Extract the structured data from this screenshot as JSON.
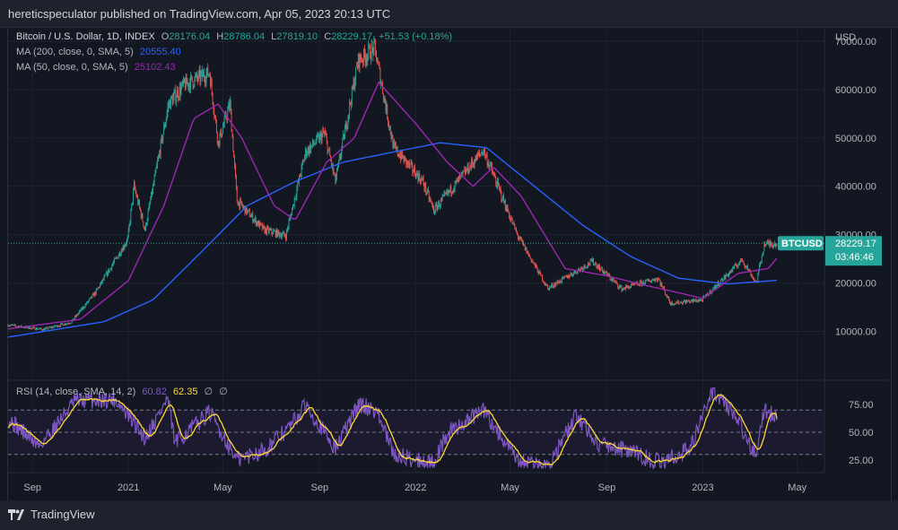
{
  "header": {
    "published": "hereticspeculator published on TradingView.com, Apr 05, 2023 20:13 UTC"
  },
  "legend": {
    "symbol": "Bitcoin / U.S. Dollar, 1D, INDEX",
    "ohlc": {
      "o_label": "O",
      "o": "28176.04",
      "h_label": "H",
      "h": "28786.04",
      "l_label": "L",
      "l": "27819.10",
      "c_label": "C",
      "c": "28229.17",
      "change": "+51.53 (+0.18%)"
    },
    "ma200": {
      "label": "MA (200, close, 0, SMA, 5)",
      "value": "20555.40"
    },
    "ma50": {
      "label": "MA (50, close, 0, SMA, 5)",
      "value": "25102.43"
    },
    "rsi": {
      "label": "RSI (14, close, SMA, 14, 2)",
      "value": "60.82",
      "sma_value": "62.35",
      "extra1": "∅",
      "extra2": "∅"
    }
  },
  "price_axis": {
    "currency": "USD",
    "ticks": [
      "70000.00",
      "60000.00",
      "50000.00",
      "40000.00",
      "30000.00",
      "20000.00",
      "10000.00"
    ]
  },
  "price_tag": {
    "symbol": "BTCUSD",
    "price": "28229.17",
    "countdown": "03:46:46"
  },
  "rsi_axis": {
    "ticks": [
      "75.00",
      "50.00",
      "25.00"
    ]
  },
  "time_axis": {
    "labels": [
      "Sep",
      "2021",
      "May",
      "Sep",
      "2022",
      "May",
      "Sep",
      "2023",
      "May"
    ]
  },
  "footer": {
    "brand": "TradingView"
  },
  "colors": {
    "up": "#26a69a",
    "down": "#ef5350",
    "ma200": "#2962ff",
    "ma50": "#9c27b0",
    "rsi": "#7e57c2",
    "rsi_sma": "#fdd835",
    "bg": "#131722"
  },
  "chart_data": {
    "type": "candlestick",
    "title": "Bitcoin / U.S. Dollar, 1D, INDEX",
    "ylim": [
      0,
      72000
    ],
    "price_key_points": [
      [
        "2020-08-01",
        11300
      ],
      [
        "2020-09-15",
        10400
      ],
      [
        "2020-10-20",
        11900
      ],
      [
        "2020-11-20",
        18000
      ],
      [
        "2020-12-31",
        29000
      ],
      [
        "2021-01-08",
        40000
      ],
      [
        "2021-01-22",
        31000
      ],
      [
        "2021-02-21",
        57000
      ],
      [
        "2021-03-13",
        61000
      ],
      [
        "2021-04-14",
        63500
      ],
      [
        "2021-04-25",
        49000
      ],
      [
        "2021-05-10",
        57000
      ],
      [
        "2021-05-19",
        37000
      ],
      [
        "2021-06-22",
        31000
      ],
      [
        "2021-07-20",
        29800
      ],
      [
        "2021-08-14",
        47000
      ],
      [
        "2021-09-07",
        51000
      ],
      [
        "2021-09-21",
        41000
      ],
      [
        "2021-10-20",
        66000
      ],
      [
        "2021-11-10",
        68500
      ],
      [
        "2021-12-04",
        48000
      ],
      [
        "2022-01-10",
        41000
      ],
      [
        "2022-01-24",
        35000
      ],
      [
        "2022-03-28",
        47500
      ],
      [
        "2022-05-10",
        30000
      ],
      [
        "2022-06-18",
        18900
      ],
      [
        "2022-08-14",
        24500
      ],
      [
        "2022-09-20",
        18800
      ],
      [
        "2022-11-05",
        21000
      ],
      [
        "2022-11-21",
        15800
      ],
      [
        "2022-12-31",
        16500
      ],
      [
        "2023-02-20",
        24800
      ],
      [
        "2023-03-10",
        20000
      ],
      [
        "2023-03-20",
        28000
      ],
      [
        "2023-04-05",
        28229
      ]
    ],
    "ma200_key_points": [
      [
        "2020-08-01",
        8800
      ],
      [
        "2020-12-01",
        12000
      ],
      [
        "2021-02-01",
        16500
      ],
      [
        "2021-04-01",
        26000
      ],
      [
        "2021-06-01",
        36000
      ],
      [
        "2021-08-01",
        41000
      ],
      [
        "2021-10-01",
        45000
      ],
      [
        "2021-12-01",
        47000
      ],
      [
        "2022-02-01",
        49000
      ],
      [
        "2022-04-01",
        48000
      ],
      [
        "2022-06-01",
        40000
      ],
      [
        "2022-08-01",
        32000
      ],
      [
        "2022-10-01",
        25500
      ],
      [
        "2022-12-01",
        21000
      ],
      [
        "2023-02-01",
        19800
      ],
      [
        "2023-04-05",
        20555
      ]
    ],
    "ma50_key_points": [
      [
        "2020-08-01",
        10500
      ],
      [
        "2020-11-01",
        12500
      ],
      [
        "2021-01-01",
        20500
      ],
      [
        "2021-02-15",
        36000
      ],
      [
        "2021-03-25",
        54000
      ],
      [
        "2021-04-25",
        57000
      ],
      [
        "2021-05-25",
        50000
      ],
      [
        "2021-07-05",
        36000
      ],
      [
        "2021-08-01",
        33000
      ],
      [
        "2021-09-10",
        45000
      ],
      [
        "2021-10-15",
        50000
      ],
      [
        "2021-11-15",
        61500
      ],
      [
        "2022-01-01",
        53000
      ],
      [
        "2022-02-10",
        45000
      ],
      [
        "2022-03-15",
        40000
      ],
      [
        "2022-04-10",
        44000
      ],
      [
        "2022-05-15",
        38000
      ],
      [
        "2022-07-10",
        23000
      ],
      [
        "2022-09-01",
        21500
      ],
      [
        "2022-10-15",
        19700
      ],
      [
        "2022-12-01",
        18000
      ],
      [
        "2023-01-01",
        16800
      ],
      [
        "2023-02-15",
        22000
      ],
      [
        "2023-03-25",
        23000
      ],
      [
        "2023-04-05",
        25102
      ]
    ],
    "rsi_key_points": [
      [
        "2020-08-01",
        62
      ],
      [
        "2020-09-10",
        38
      ],
      [
        "2020-10-25",
        78
      ],
      [
        "2020-12-15",
        80
      ],
      [
        "2021-01-22",
        45
      ],
      [
        "2021-02-20",
        80
      ],
      [
        "2021-03-01",
        40
      ],
      [
        "2021-04-14",
        68
      ],
      [
        "2021-05-19",
        25
      ],
      [
        "2021-06-25",
        35
      ],
      [
        "2021-07-25",
        55
      ],
      [
        "2021-08-15",
        75
      ],
      [
        "2021-09-21",
        35
      ],
      [
        "2021-10-20",
        75
      ],
      [
        "2021-11-12",
        70
      ],
      [
        "2021-12-04",
        30
      ],
      [
        "2022-01-22",
        22
      ],
      [
        "2022-02-12",
        50
      ],
      [
        "2022-03-28",
        70
      ],
      [
        "2022-05-12",
        22
      ],
      [
        "2022-06-18",
        20
      ],
      [
        "2022-07-25",
        65
      ],
      [
        "2022-08-20",
        40
      ],
      [
        "2022-09-20",
        35
      ],
      [
        "2022-11-09",
        22
      ],
      [
        "2022-12-15",
        35
      ],
      [
        "2023-01-14",
        88
      ],
      [
        "2023-02-01",
        75
      ],
      [
        "2023-03-10",
        30
      ],
      [
        "2023-03-20",
        72
      ],
      [
        "2023-04-05",
        61
      ]
    ],
    "rsi_ylim": [
      0,
      100
    ]
  }
}
